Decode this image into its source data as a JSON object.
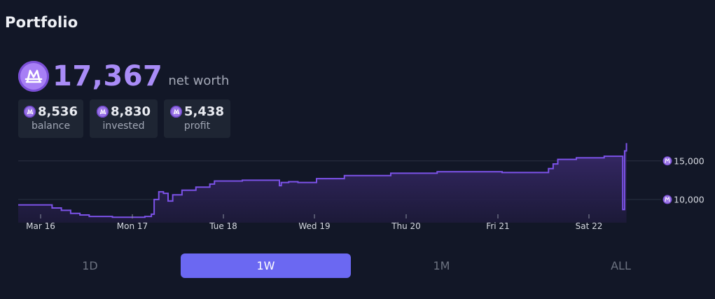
{
  "page": {
    "title": "Portfolio"
  },
  "networth": {
    "value": "17,367",
    "label": "net worth",
    "icon": "mana-icon"
  },
  "stats": [
    {
      "value": "8,536",
      "label": "balance"
    },
    {
      "value": "8,830",
      "label": "invested"
    },
    {
      "value": "5,438",
      "label": "profit"
    }
  ],
  "tabs": [
    {
      "label": "1D",
      "active": false
    },
    {
      "label": "1W",
      "active": true
    },
    {
      "label": "1M",
      "active": false
    },
    {
      "label": "ALL",
      "active": false
    }
  ],
  "colors": {
    "accent": "#6b68f2",
    "line": "#7c52e8",
    "fill": "#2f2458",
    "mana": "#a77ff5"
  },
  "chart_data": {
    "type": "area",
    "x_ticks": [
      "Mar 16",
      "Mon 17",
      "Tue 18",
      "Wed 19",
      "Thu 20",
      "Fri 21",
      "Sat 22"
    ],
    "y_ticks": [
      "15,000",
      "10,000"
    ],
    "y_tick_values": [
      15000,
      10000
    ],
    "ylim": [
      7000,
      17700
    ],
    "grid": true,
    "series": [
      {
        "x_days": [
          0,
          0.25,
          0.35,
          0.45,
          0.55,
          0.65,
          0.75,
          1.0,
          1.2,
          1.35,
          1.42,
          1.45,
          1.5,
          1.55,
          1.6,
          1.65,
          1.75,
          1.9,
          2.05,
          2.1,
          2.4,
          2.7,
          2.8,
          2.82,
          2.9,
          3.0,
          3.2,
          3.5,
          4.0,
          4.5,
          4.8,
          5.2,
          5.6,
          5.7,
          5.75,
          5.8,
          6.0,
          6.3,
          6.48,
          6.5,
          6.52,
          6.54
        ],
        "values": [
          9300,
          9300,
          8900,
          8600,
          8200,
          8000,
          7800,
          7700,
          7700,
          7800,
          8100,
          10000,
          11000,
          10800,
          9800,
          10600,
          11200,
          11600,
          12000,
          12400,
          12500,
          12500,
          11800,
          12200,
          12300,
          12200,
          12700,
          13100,
          13400,
          13600,
          13600,
          13500,
          13500,
          14000,
          14600,
          15200,
          15400,
          15600,
          15600,
          8700,
          16300,
          17300
        ]
      }
    ]
  }
}
